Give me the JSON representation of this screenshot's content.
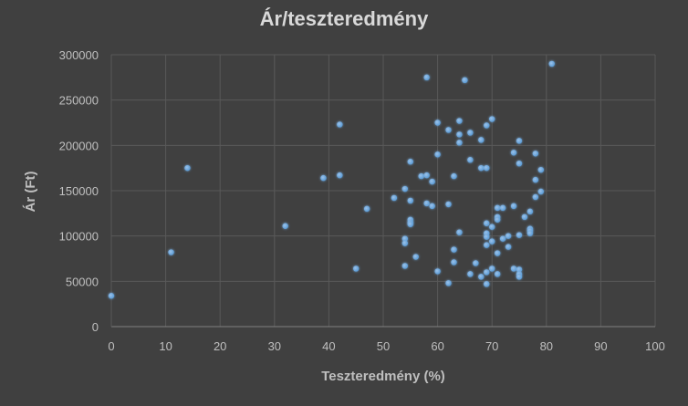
{
  "chart_data": {
    "type": "scatter",
    "title": "Ár/teszteredmény",
    "xlabel": "Teszteredmény (%)",
    "ylabel": "Ár (Ft)",
    "xlim": [
      0,
      100
    ],
    "ylim": [
      0,
      300000
    ],
    "x_ticks": [
      "0",
      "10",
      "20",
      "30",
      "40",
      "50",
      "60",
      "70",
      "80",
      "90",
      "100"
    ],
    "y_ticks": [
      "0",
      "50000",
      "100000",
      "150000",
      "200000",
      "250000",
      "300000"
    ],
    "grid": true,
    "legend": "none",
    "colors": {
      "background": "#404040",
      "point": "#5b9bd5",
      "grid": "#595959",
      "text": "#bfbfbf",
      "title": "#d9d9d9"
    },
    "points": [
      [
        0,
        34000
      ],
      [
        11,
        82000
      ],
      [
        14,
        175000
      ],
      [
        32,
        111000
      ],
      [
        39,
        164000
      ],
      [
        42,
        223000
      ],
      [
        42,
        167000
      ],
      [
        45,
        64000
      ],
      [
        47,
        130000
      ],
      [
        52,
        142000
      ],
      [
        54,
        152000
      ],
      [
        54,
        97000
      ],
      [
        54,
        92000
      ],
      [
        54,
        67000
      ],
      [
        55,
        182000
      ],
      [
        55,
        139000
      ],
      [
        55,
        118000
      ],
      [
        55,
        115000
      ],
      [
        55,
        113000
      ],
      [
        56,
        77000
      ],
      [
        57,
        166000
      ],
      [
        58,
        275000
      ],
      [
        58,
        167000
      ],
      [
        58,
        136000
      ],
      [
        59,
        160000
      ],
      [
        59,
        133000
      ],
      [
        60,
        225000
      ],
      [
        60,
        190000
      ],
      [
        60,
        61000
      ],
      [
        62,
        217000
      ],
      [
        62,
        135000
      ],
      [
        62,
        48000
      ],
      [
        63,
        166000
      ],
      [
        63,
        85000
      ],
      [
        63,
        71000
      ],
      [
        64,
        227000
      ],
      [
        64,
        212000
      ],
      [
        64,
        203000
      ],
      [
        64,
        104000
      ],
      [
        65,
        272000
      ],
      [
        66,
        214000
      ],
      [
        66,
        184000
      ],
      [
        66,
        58000
      ],
      [
        67,
        70000
      ],
      [
        68,
        206000
      ],
      [
        68,
        175000
      ],
      [
        68,
        55000
      ],
      [
        69,
        222000
      ],
      [
        69,
        175000
      ],
      [
        69,
        114000
      ],
      [
        69,
        103000
      ],
      [
        69,
        99000
      ],
      [
        69,
        90000
      ],
      [
        69,
        60000
      ],
      [
        69,
        47000
      ],
      [
        70,
        229000
      ],
      [
        70,
        110000
      ],
      [
        70,
        94000
      ],
      [
        70,
        64000
      ],
      [
        71,
        131000
      ],
      [
        71,
        121000
      ],
      [
        71,
        118000
      ],
      [
        71,
        81000
      ],
      [
        71,
        58000
      ],
      [
        72,
        131000
      ],
      [
        72,
        97000
      ],
      [
        73,
        100000
      ],
      [
        73,
        88000
      ],
      [
        74,
        192000
      ],
      [
        74,
        133000
      ],
      [
        74,
        64000
      ],
      [
        75,
        205000
      ],
      [
        75,
        180000
      ],
      [
        75,
        101000
      ],
      [
        75,
        63000
      ],
      [
        75,
        58000
      ],
      [
        75,
        55000
      ],
      [
        76,
        121000
      ],
      [
        77,
        127000
      ],
      [
        77,
        108000
      ],
      [
        77,
        106000
      ],
      [
        77,
        103000
      ],
      [
        78,
        191000
      ],
      [
        78,
        162000
      ],
      [
        78,
        143000
      ],
      [
        79,
        173000
      ],
      [
        79,
        149000
      ],
      [
        81,
        290000
      ]
    ]
  }
}
